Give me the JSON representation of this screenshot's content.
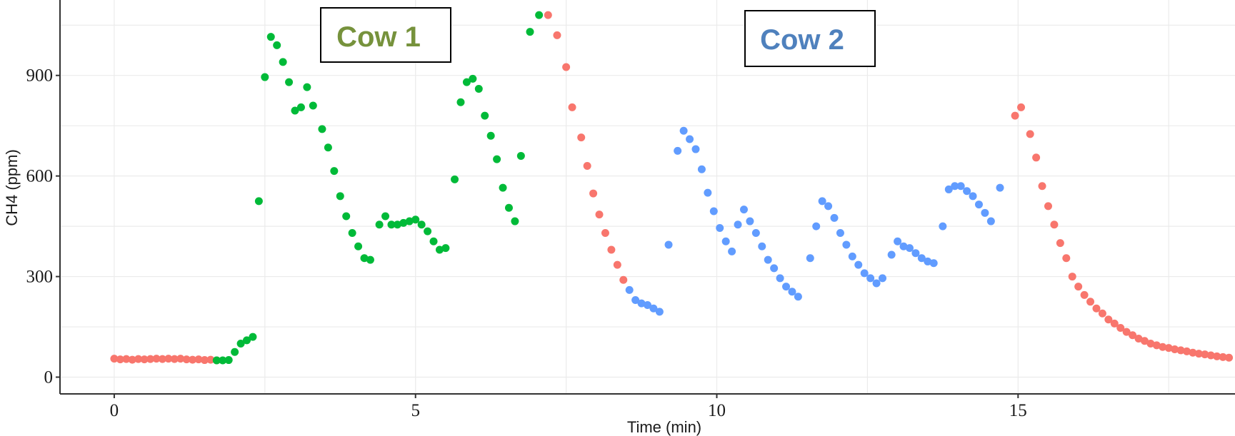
{
  "chart_data": {
    "type": "scatter",
    "title": "",
    "xlabel": "Time (min)",
    "ylabel": "CH4 (ppm)",
    "xlim": [
      -0.9,
      18.6
    ],
    "ylim": [
      -50,
      1125
    ],
    "xticks": [
      0,
      5,
      10,
      15
    ],
    "yticks": [
      0,
      300,
      600,
      900
    ],
    "grid": true,
    "legend": "none",
    "annotations": [
      {
        "text": "Cow 1",
        "color": "#76923C"
      },
      {
        "text": "Cow 2",
        "color": "#4F81BD"
      }
    ],
    "series": [
      {
        "color": "#F8766D",
        "points": [
          [
            0.0,
            55
          ],
          [
            0.1,
            53
          ],
          [
            0.2,
            54
          ],
          [
            0.3,
            52
          ],
          [
            0.4,
            54
          ],
          [
            0.5,
            53
          ],
          [
            0.6,
            54
          ],
          [
            0.7,
            55
          ],
          [
            0.8,
            54
          ],
          [
            0.9,
            55
          ],
          [
            1.0,
            54
          ],
          [
            1.1,
            55
          ],
          [
            1.2,
            53
          ],
          [
            1.3,
            52
          ],
          [
            1.4,
            53
          ],
          [
            1.5,
            51
          ],
          [
            1.6,
            52
          ],
          [
            1.7,
            50
          ],
          [
            7.2,
            1080
          ],
          [
            7.35,
            1020
          ],
          [
            7.5,
            925
          ],
          [
            7.6,
            805
          ],
          [
            7.75,
            715
          ],
          [
            7.85,
            630
          ],
          [
            7.95,
            548
          ],
          [
            8.05,
            485
          ],
          [
            8.15,
            430
          ],
          [
            8.25,
            380
          ],
          [
            8.35,
            335
          ],
          [
            8.45,
            290
          ],
          [
            14.95,
            780
          ],
          [
            15.05,
            805
          ],
          [
            15.2,
            725
          ],
          [
            15.3,
            655
          ],
          [
            15.4,
            570
          ],
          [
            15.5,
            510
          ],
          [
            15.6,
            455
          ],
          [
            15.7,
            400
          ],
          [
            15.8,
            355
          ],
          [
            15.9,
            300
          ],
          [
            16.0,
            270
          ],
          [
            16.1,
            245
          ],
          [
            16.2,
            225
          ],
          [
            16.3,
            205
          ],
          [
            16.4,
            190
          ],
          [
            16.5,
            172
          ],
          [
            16.6,
            160
          ],
          [
            16.7,
            147
          ],
          [
            16.8,
            135
          ],
          [
            16.9,
            125
          ],
          [
            17.0,
            115
          ],
          [
            17.1,
            108
          ],
          [
            17.2,
            100
          ],
          [
            17.3,
            95
          ],
          [
            17.4,
            90
          ],
          [
            17.5,
            87
          ],
          [
            17.6,
            83
          ],
          [
            17.7,
            80
          ],
          [
            17.8,
            77
          ],
          [
            17.9,
            73
          ],
          [
            18.0,
            70
          ],
          [
            18.1,
            68
          ],
          [
            18.2,
            65
          ],
          [
            18.3,
            62
          ],
          [
            18.4,
            60
          ],
          [
            18.5,
            58
          ]
        ]
      },
      {
        "color": "#00BA38",
        "points": [
          [
            1.7,
            50
          ],
          [
            1.8,
            50
          ],
          [
            1.9,
            51
          ],
          [
            2.0,
            75
          ],
          [
            2.1,
            100
          ],
          [
            2.2,
            110
          ],
          [
            2.3,
            120
          ],
          [
            2.4,
            525
          ],
          [
            2.5,
            895
          ],
          [
            2.6,
            1015
          ],
          [
            2.7,
            990
          ],
          [
            2.8,
            940
          ],
          [
            2.9,
            880
          ],
          [
            3.0,
            795
          ],
          [
            3.1,
            805
          ],
          [
            3.2,
            865
          ],
          [
            3.3,
            810
          ],
          [
            3.45,
            740
          ],
          [
            3.55,
            685
          ],
          [
            3.65,
            615
          ],
          [
            3.75,
            540
          ],
          [
            3.85,
            480
          ],
          [
            3.95,
            430
          ],
          [
            4.05,
            390
          ],
          [
            4.15,
            355
          ],
          [
            4.25,
            350
          ],
          [
            4.4,
            455
          ],
          [
            4.5,
            480
          ],
          [
            4.6,
            455
          ],
          [
            4.7,
            455
          ],
          [
            4.8,
            460
          ],
          [
            4.9,
            465
          ],
          [
            5.0,
            470
          ],
          [
            5.1,
            455
          ],
          [
            5.2,
            435
          ],
          [
            5.3,
            405
          ],
          [
            5.4,
            380
          ],
          [
            5.5,
            385
          ],
          [
            5.65,
            590
          ],
          [
            5.75,
            820
          ],
          [
            5.85,
            880
          ],
          [
            5.95,
            890
          ],
          [
            6.05,
            860
          ],
          [
            6.15,
            780
          ],
          [
            6.25,
            720
          ],
          [
            6.35,
            650
          ],
          [
            6.45,
            565
          ],
          [
            6.55,
            505
          ],
          [
            6.65,
            465
          ],
          [
            6.75,
            660
          ],
          [
            6.9,
            1030
          ],
          [
            7.05,
            1080
          ]
        ]
      },
      {
        "color": "#619CFF",
        "points": [
          [
            8.55,
            260
          ],
          [
            8.65,
            230
          ],
          [
            8.75,
            220
          ],
          [
            8.85,
            215
          ],
          [
            8.95,
            205
          ],
          [
            9.05,
            195
          ],
          [
            9.2,
            395
          ],
          [
            9.35,
            675
          ],
          [
            9.45,
            735
          ],
          [
            9.55,
            710
          ],
          [
            9.65,
            680
          ],
          [
            9.75,
            620
          ],
          [
            9.85,
            550
          ],
          [
            9.95,
            495
          ],
          [
            10.05,
            445
          ],
          [
            10.15,
            405
          ],
          [
            10.25,
            375
          ],
          [
            10.35,
            455
          ],
          [
            10.45,
            500
          ],
          [
            10.55,
            465
          ],
          [
            10.65,
            430
          ],
          [
            10.75,
            390
          ],
          [
            10.85,
            350
          ],
          [
            10.95,
            325
          ],
          [
            11.05,
            295
          ],
          [
            11.15,
            270
          ],
          [
            11.25,
            255
          ],
          [
            11.35,
            240
          ],
          [
            11.55,
            355
          ],
          [
            11.65,
            450
          ],
          [
            11.75,
            525
          ],
          [
            11.85,
            510
          ],
          [
            11.95,
            475
          ],
          [
            12.05,
            430
          ],
          [
            12.15,
            395
          ],
          [
            12.25,
            360
          ],
          [
            12.35,
            335
          ],
          [
            12.45,
            310
          ],
          [
            12.55,
            295
          ],
          [
            12.65,
            280
          ],
          [
            12.75,
            295
          ],
          [
            12.9,
            365
          ],
          [
            13.0,
            405
          ],
          [
            13.1,
            390
          ],
          [
            13.2,
            385
          ],
          [
            13.3,
            370
          ],
          [
            13.4,
            355
          ],
          [
            13.5,
            345
          ],
          [
            13.6,
            340
          ],
          [
            13.75,
            450
          ],
          [
            13.85,
            560
          ],
          [
            13.95,
            570
          ],
          [
            14.05,
            570
          ],
          [
            14.15,
            555
          ],
          [
            14.25,
            540
          ],
          [
            14.35,
            515
          ],
          [
            14.45,
            490
          ],
          [
            14.55,
            465
          ],
          [
            14.7,
            565
          ]
        ]
      }
    ]
  }
}
